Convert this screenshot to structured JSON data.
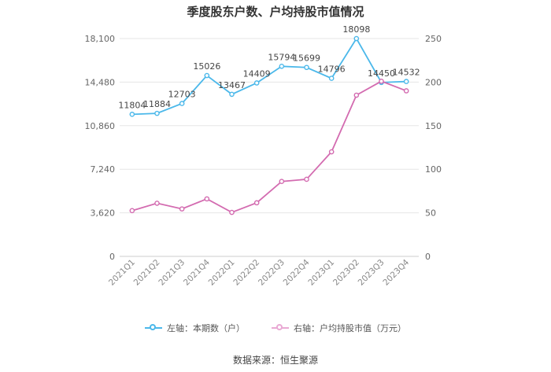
{
  "chart_data": {
    "type": "line",
    "title": "季度股东户数、户均持股市值情况",
    "categories": [
      "2021Q1",
      "2021Q2",
      "2021Q3",
      "2021Q4",
      "2022Q1",
      "2022Q2",
      "2022Q3",
      "2022Q4",
      "2023Q1",
      "2023Q2",
      "2023Q3",
      "2023Q4"
    ],
    "series": [
      {
        "name": "左轴：本期数（户）",
        "axis": "left",
        "color": "#4bb8ea",
        "values": [
          11804,
          11884,
          12703,
          15026,
          13467,
          14409,
          15794,
          15699,
          14796,
          18098,
          14450,
          14532
        ],
        "show_labels": true
      },
      {
        "name": "右轴：户均持股市值（万元）",
        "axis": "right",
        "color": "#d36bb0",
        "values": [
          52.5,
          61,
          54.5,
          66,
          50.5,
          61.5,
          86,
          88.5,
          120,
          185,
          201,
          190
        ],
        "show_labels": false
      }
    ],
    "left_axis": {
      "ticks": [
        "0",
        "3,620",
        "7,240",
        "10,860",
        "14,480",
        "18,100"
      ],
      "ylim": [
        0,
        18100
      ]
    },
    "right_axis": {
      "ticks": [
        "0",
        "50",
        "100",
        "150",
        "200",
        "250"
      ],
      "ylim": [
        0,
        250
      ]
    },
    "grid": true,
    "legend_position": "bottom"
  },
  "source": "数据来源：恒生聚源"
}
